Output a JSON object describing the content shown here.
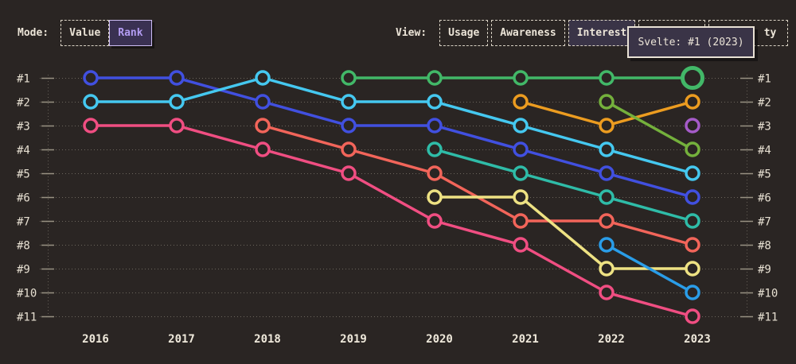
{
  "colors": {
    "background": "#2a2523",
    "text_cream": "#ece5d8",
    "grid": "#a39c8d",
    "tooltip_bg": "#3a3447",
    "mode_active_bg": "#3a3152",
    "mode_active_border": "#cdbdf3",
    "mode_active_text": "#b39cf2",
    "view_active_bg": "#3a3447"
  },
  "mode": {
    "label": "Mode:",
    "buttons": [
      {
        "label": "Value",
        "active": false
      },
      {
        "label": "Rank",
        "active": true
      }
    ]
  },
  "view": {
    "label": "View:",
    "buttons": [
      {
        "label": "Usage",
        "active": false
      },
      {
        "label": "Awareness",
        "active": false
      },
      {
        "label": "Interest",
        "active": true
      },
      {
        "label": "",
        "active": false,
        "hidden_behind_tooltip": true
      },
      {
        "label": "ty",
        "active": false,
        "partially_visible": true
      }
    ]
  },
  "tooltip": {
    "text": "Svelte: #1 (2023)"
  },
  "chart_data": {
    "type": "line",
    "subtype": "bump-rank-chart",
    "x": [
      2016,
      2017,
      2018,
      2019,
      2020,
      2021,
      2022,
      2023
    ],
    "y_axis_labels": [
      "#1",
      "#2",
      "#3",
      "#4",
      "#5",
      "#6",
      "#7",
      "#8",
      "#9",
      "#10",
      "#11"
    ],
    "ylim": [
      1,
      11
    ],
    "y_inverted": true,
    "grid": "dotted-horizontal",
    "legend": "none",
    "series": [
      {
        "name": "series-indigo",
        "color": "#4150e0",
        "ranks": [
          1,
          1,
          2,
          3,
          3,
          4,
          5,
          6
        ]
      },
      {
        "name": "series-cyan",
        "color": "#45c8f0",
        "ranks": [
          2,
          2,
          1,
          2,
          2,
          3,
          4,
          5
        ]
      },
      {
        "name": "series-pink",
        "color": "#f04e82",
        "ranks": [
          3,
          3,
          4,
          5,
          7,
          8,
          10,
          11
        ]
      },
      {
        "name": "series-red",
        "color": "#f2655a",
        "ranks": [
          null,
          null,
          3,
          4,
          5,
          7,
          7,
          8
        ]
      },
      {
        "name": "series-teal",
        "color": "#2fbca8",
        "ranks": [
          null,
          null,
          null,
          null,
          4,
          5,
          6,
          7
        ]
      },
      {
        "name": "series-yellow",
        "color": "#eee283",
        "ranks": [
          null,
          null,
          null,
          null,
          6,
          6,
          9,
          9
        ]
      },
      {
        "name": "series-orange",
        "color": "#ec9c20",
        "ranks": [
          null,
          null,
          null,
          null,
          null,
          2,
          3,
          2
        ]
      },
      {
        "name": "series-olive",
        "color": "#74b03c",
        "ranks": [
          null,
          null,
          null,
          null,
          null,
          null,
          2,
          4
        ]
      },
      {
        "name": "series-blue",
        "color": "#2a9de8",
        "ranks": [
          null,
          null,
          null,
          null,
          null,
          null,
          8,
          10
        ]
      },
      {
        "name": "series-purple",
        "color": "#a55bc8",
        "ranks": [
          null,
          null,
          null,
          null,
          null,
          null,
          null,
          3
        ]
      },
      {
        "name": "svelte",
        "color": "#42b868",
        "ranks": [
          null,
          null,
          null,
          1,
          1,
          1,
          1,
          1
        ],
        "highlight_last": true
      }
    ],
    "highlight": {
      "series": "svelte",
      "year": 2023,
      "rank": 1,
      "tooltip": "Svelte: #1 (2023)"
    }
  }
}
